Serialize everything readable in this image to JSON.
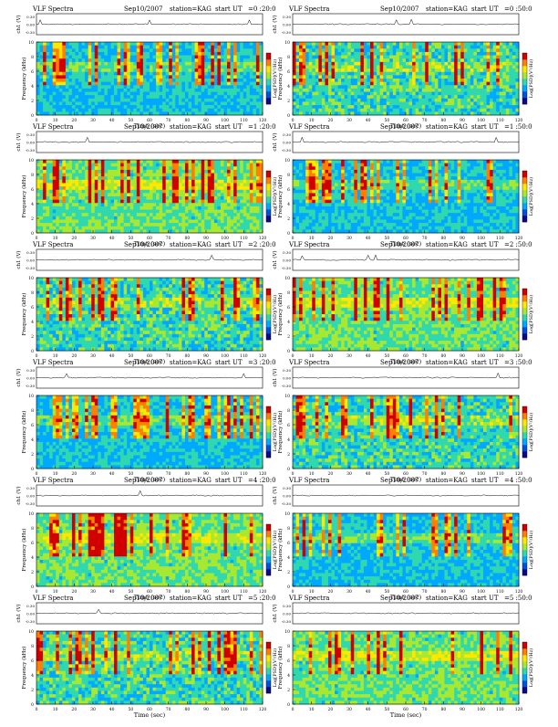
{
  "chart_data": {
    "type": "heatmap",
    "panel_title": "VLF Spectra",
    "date": "Sep10/2007",
    "station": "station=KAG",
    "start_prefix": "start  UT",
    "xlabel": "Time  (sec)",
    "ylabel_spec": "Frequency  (kHz)",
    "ylabel_ch": "ch1 (V)",
    "cbar_label": "Log[PSD](V²/Hz)",
    "ch_ticks": [
      "0.30",
      "0.00",
      "-0.30"
    ],
    "freq_ticks": [
      "10",
      "8",
      "6",
      "4",
      "2",
      "0"
    ],
    "time_ticks": [
      "0",
      "10",
      "20",
      "30",
      "40",
      "50",
      "60",
      "70",
      "80",
      "90",
      "100",
      "110",
      "120"
    ],
    "xlim": [
      0,
      120
    ],
    "ylim": [
      0,
      10
    ],
    "colormap": [
      "#0a0a88",
      "#0050e0",
      "#00a8ff",
      "#30d8b0",
      "#a8e830",
      "#ffe800",
      "#ff8000",
      "#d00000"
    ],
    "panels": [
      {
        "start": "=0 :20:0"
      },
      {
        "start": "=0 :50:0"
      },
      {
        "start": "=1 :20:0"
      },
      {
        "start": "=1 :50:0"
      },
      {
        "start": "=2 :20:0"
      },
      {
        "start": "=2 :50:0"
      },
      {
        "start": "=3 :20:0"
      },
      {
        "start": "=3 :50:0"
      },
      {
        "start": "=4 :20:0"
      },
      {
        "start": "=4 :50:0"
      },
      {
        "start": "=5 :20:0"
      },
      {
        "start": "=5 :50:0"
      }
    ]
  }
}
